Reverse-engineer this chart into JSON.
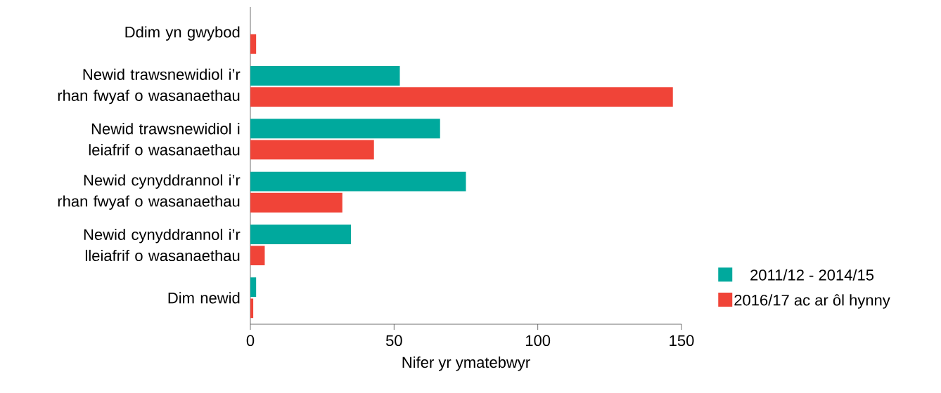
{
  "chart_data": {
    "type": "bar",
    "orientation": "horizontal",
    "xlabel": "Nifer yr ymatebwyr",
    "categories": [
      "Ddim yn gwybod",
      "Newid trawsnewidiol i’r rhan fwyaf o wasanaethau",
      "Newid trawsnewidiol i leiafrif o wasanaethau",
      "Newid cynyddrannol i’r rhan fwyaf o wasanaethau",
      "Newid cynyddrannol i’r lleiafrif o wasanaethau",
      "Dim newid"
    ],
    "series": [
      {
        "name": "2011/12 - 2014/15",
        "color": "#00a99d",
        "values": [
          null,
          52,
          66,
          75,
          35,
          2
        ]
      },
      {
        "name": "2016/17 ac ar ôl hynny",
        "color": "#f04438",
        "values": [
          2,
          147,
          43,
          32,
          5,
          1
        ]
      }
    ],
    "xlim": [
      0,
      150
    ],
    "xticks": [
      0,
      50,
      100,
      150
    ],
    "grid": false,
    "legend": "right"
  }
}
